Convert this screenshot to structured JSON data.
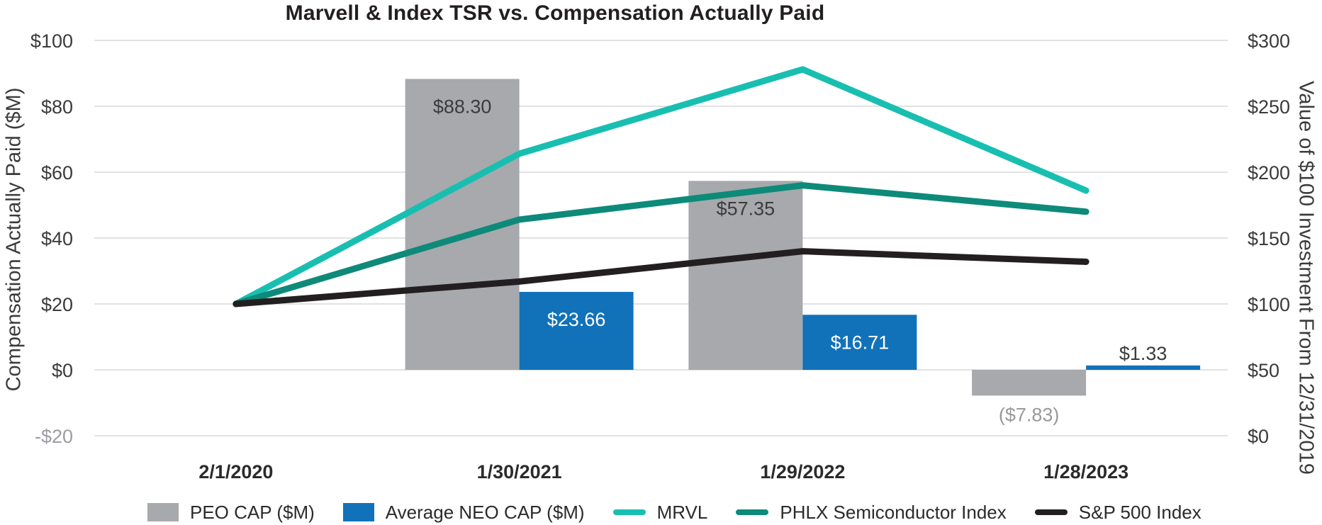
{
  "title": "Marvell & Index TSR vs. Compensation Actually Paid",
  "chart_data": {
    "type": "combo bar+line, dual y-axes",
    "categories": [
      "2/1/2020",
      "1/30/2021",
      "1/29/2022",
      "1/28/2023"
    ],
    "bar_series": [
      {
        "name": "PEO CAP ($M)",
        "color": "#a7a9ac",
        "axis": "left",
        "values": [
          null,
          88.3,
          57.35,
          -7.83
        ],
        "labels": [
          null,
          {
            "text": "$88.30",
            "pos": "inside",
            "color": "#3b3b3d"
          },
          {
            "text": "$57.35",
            "pos": "inside",
            "color": "#3b3b3d"
          },
          {
            "text": "($7.83)",
            "pos": "below",
            "color": "#97999c"
          }
        ]
      },
      {
        "name": "Average NEO CAP ($M)",
        "color": "#1172b9",
        "axis": "left",
        "values": [
          null,
          23.66,
          16.71,
          1.33
        ],
        "labels": [
          null,
          {
            "text": "$23.66",
            "pos": "inside",
            "color": "#ffffff"
          },
          {
            "text": "$16.71",
            "pos": "inside",
            "color": "#ffffff"
          },
          {
            "text": "$1.33",
            "pos": "above",
            "color": "#3b3b3d"
          }
        ]
      }
    ],
    "line_series": [
      {
        "name": "MRVL",
        "color": "#18bfb1",
        "axis": "right",
        "values": [
          100,
          214,
          278,
          186
        ]
      },
      {
        "name": "PHLX Semiconductor Index",
        "color": "#0e8a7a",
        "axis": "right",
        "values": [
          100,
          164,
          190,
          170
        ]
      },
      {
        "name": "S&P 500 Index",
        "color": "#231f20",
        "axis": "right",
        "values": [
          100,
          117,
          140,
          132
        ]
      }
    ],
    "left_axis": {
      "title": "Compensation Actually Paid ($M)",
      "min": -20,
      "max": 100,
      "ticks": [
        {
          "v": 100,
          "label": "$100",
          "color": "#3b3b3d"
        },
        {
          "v": 80,
          "label": "$80",
          "color": "#3b3b3d"
        },
        {
          "v": 60,
          "label": "$60",
          "color": "#3b3b3d"
        },
        {
          "v": 40,
          "label": "$40",
          "color": "#3b3b3d"
        },
        {
          "v": 20,
          "label": "$20",
          "color": "#3b3b3d"
        },
        {
          "v": 0,
          "label": "$0",
          "color": "#3b3b3d"
        },
        {
          "v": -20,
          "label": "-$20",
          "color": "#9b9da1"
        }
      ]
    },
    "right_axis": {
      "title": "Value of $100 Investment From 12/31/2019",
      "min": 0,
      "max": 300,
      "ticks": [
        {
          "v": 300,
          "label": "$300",
          "color": "#3b3b3d"
        },
        {
          "v": 250,
          "label": "$250",
          "color": "#3b3b3d"
        },
        {
          "v": 200,
          "label": "$200",
          "color": "#3b3b3d"
        },
        {
          "v": 150,
          "label": "$150",
          "color": "#3b3b3d"
        },
        {
          "v": 100,
          "label": "$100",
          "color": "#3b3b3d"
        },
        {
          "v": 50,
          "label": "$50",
          "color": "#3b3b3d"
        },
        {
          "v": 0,
          "label": "$0",
          "color": "#3b3b3d"
        }
      ]
    },
    "grid": "horizontal gridlines, light gray",
    "gridline_color": "#e2e2e2",
    "legend_position": "bottom"
  }
}
